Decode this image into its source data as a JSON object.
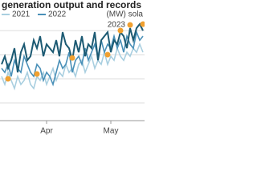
{
  "chart_data": {
    "type": "line",
    "title": "generation output and records",
    "unit_note": "(MW) sola",
    "xlim": [
      0,
      44
    ],
    "ylim": [
      0,
      120
    ],
    "xticks": [
      {
        "value": 14,
        "label": "Apr"
      },
      {
        "value": 34,
        "label": "May"
      }
    ],
    "series": [
      {
        "name": "2021",
        "color": "#a9cfe0",
        "values": [
          55,
          45,
          60,
          50,
          40,
          55,
          45,
          50,
          60,
          45,
          40,
          55,
          50,
          60,
          45,
          55,
          65,
          50,
          60,
          55,
          70,
          60,
          65,
          55,
          70,
          75,
          60,
          70,
          80,
          65,
          75,
          70,
          85,
          70,
          80,
          75,
          90,
          80,
          75,
          85,
          80,
          90,
          85,
          95,
          85
        ]
      },
      {
        "name": "2022",
        "color": "#4a90b8",
        "values": [
          65,
          60,
          70,
          55,
          75,
          65,
          60,
          80,
          70,
          60,
          55,
          70,
          65,
          50,
          60,
          55,
          45,
          60,
          75,
          65,
          70,
          85,
          60,
          75,
          80,
          70,
          90,
          75,
          85,
          95,
          80,
          100,
          85,
          95,
          90,
          105,
          90,
          100,
          85,
          105,
          95,
          90,
          110,
          100,
          105
        ]
      },
      {
        "color": "#1c5a73",
        "values": [
          70,
          80,
          65,
          75,
          90,
          60,
          85,
          95,
          75,
          80,
          100,
          90,
          105,
          80,
          95,
          90,
          85,
          100,
          80,
          110,
          95,
          90,
          75,
          100,
          85,
          105,
          80,
          95,
          90,
          110,
          75,
          100,
          105,
          110,
          85,
          100,
          95,
          110,
          105,
          90,
          115,
          100,
          115,
          120,
          112
        ]
      }
    ],
    "records": {
      "name": "2023",
      "color": "#f0a030",
      "x": [
        2,
        11,
        22,
        33,
        37,
        44
      ],
      "values": [
        52,
        58,
        78,
        82,
        112,
        120
      ]
    }
  }
}
